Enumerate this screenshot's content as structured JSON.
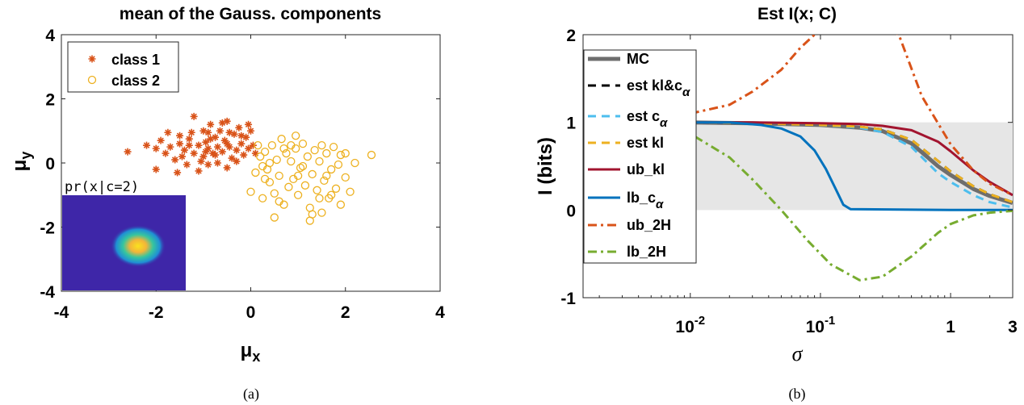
{
  "figure": {
    "caption_a": "(a)",
    "caption_b": "(b)"
  },
  "chart_data": [
    {
      "type": "scatter",
      "title": "mean of the Gauss. components",
      "xlabel": "μx",
      "ylabel": "μy",
      "xlim": [
        -4,
        4
      ],
      "ylim": [
        -4,
        4
      ],
      "xticks": [
        "-4",
        "-2",
        "0",
        "2",
        "4"
      ],
      "yticks": [
        "-4",
        "-2",
        "0",
        "2",
        "4"
      ],
      "grid": false,
      "legend_position": "top-left",
      "inset_label": "pr(x|c=2)",
      "series": [
        {
          "name": "class 1",
          "marker": "star",
          "color": "#d95319",
          "points": [
            [
              -2.6,
              0.35
            ],
            [
              -2.2,
              0.55
            ],
            [
              -2.0,
              0.45
            ],
            [
              -1.9,
              0.7
            ],
            [
              -1.8,
              0.3
            ],
            [
              -1.7,
              0.5
            ],
            [
              -1.6,
              0.1
            ],
            [
              -1.5,
              0.6
            ],
            [
              -1.5,
              0.85
            ],
            [
              -1.4,
              0.4
            ],
            [
              -1.35,
              -0.05
            ],
            [
              -1.3,
              0.75
            ],
            [
              -1.2,
              0.3
            ],
            [
              -1.2,
              1.45
            ],
            [
              -1.1,
              0.55
            ],
            [
              -1.1,
              -0.25
            ],
            [
              -1.0,
              1.0
            ],
            [
              -1.0,
              0.2
            ],
            [
              -0.95,
              0.65
            ],
            [
              -0.9,
              0.45
            ],
            [
              -0.9,
              -0.05
            ],
            [
              -0.85,
              1.2
            ],
            [
              -0.8,
              0.3
            ],
            [
              -0.75,
              0.8
            ],
            [
              -0.7,
              0.5
            ],
            [
              -0.7,
              0.0
            ],
            [
              -0.65,
              1.0
            ],
            [
              -0.6,
              0.35
            ],
            [
              -0.55,
              0.7
            ],
            [
              -0.5,
              -0.15
            ],
            [
              -0.5,
              1.3
            ],
            [
              -0.45,
              0.5
            ],
            [
              -0.4,
              0.15
            ],
            [
              -0.35,
              0.9
            ],
            [
              -0.3,
              0.4
            ],
            [
              -0.25,
              1.1
            ],
            [
              -0.2,
              0.6
            ],
            [
              -0.15,
              0.25
            ],
            [
              -0.1,
              0.8
            ],
            [
              -0.05,
              0.45
            ],
            [
              0.0,
              1.0
            ],
            [
              0.05,
              0.55
            ],
            [
              -1.25,
              0.95
            ],
            [
              -1.55,
              -0.3
            ],
            [
              -0.85,
              0.75
            ],
            [
              -1.05,
              0.05
            ],
            [
              -0.6,
              1.25
            ],
            [
              -0.3,
              0.05
            ],
            [
              0.1,
              0.3
            ],
            [
              -2.0,
              -0.2
            ],
            [
              -1.75,
              0.95
            ],
            [
              -0.95,
              0.35
            ],
            [
              -1.3,
              0.55
            ],
            [
              -0.45,
              0.95
            ],
            [
              -0.05,
              1.2
            ],
            [
              -0.75,
              0.25
            ],
            [
              -0.5,
              0.6
            ],
            [
              -1.45,
              0.2
            ],
            [
              -0.2,
              0.85
            ],
            [
              -0.9,
              0.95
            ]
          ]
        },
        {
          "name": "class 2",
          "marker": "circle",
          "color": "#edb120",
          "points": [
            [
              0.0,
              -0.9
            ],
            [
              0.1,
              -0.3
            ],
            [
              0.2,
              0.2
            ],
            [
              0.25,
              -1.1
            ],
            [
              0.3,
              0.35
            ],
            [
              0.35,
              -0.2
            ],
            [
              0.4,
              -0.6
            ],
            [
              0.45,
              0.55
            ],
            [
              0.5,
              -0.95
            ],
            [
              0.55,
              0.1
            ],
            [
              0.6,
              -0.4
            ],
            [
              0.65,
              0.75
            ],
            [
              0.7,
              -1.3
            ],
            [
              0.75,
              0.3
            ],
            [
              0.8,
              -0.75
            ],
            [
              0.85,
              0.05
            ],
            [
              0.9,
              -0.5
            ],
            [
              0.95,
              0.45
            ],
            [
              1.0,
              -1.0
            ],
            [
              1.05,
              -0.15
            ],
            [
              1.1,
              0.6
            ],
            [
              1.15,
              -0.7
            ],
            [
              1.2,
              0.2
            ],
            [
              1.25,
              -1.4
            ],
            [
              1.3,
              -0.35
            ],
            [
              1.35,
              0.4
            ],
            [
              1.4,
              -0.85
            ],
            [
              1.45,
              0.05
            ],
            [
              1.5,
              -1.55
            ],
            [
              1.55,
              -0.55
            ],
            [
              1.6,
              0.3
            ],
            [
              1.65,
              -1.1
            ],
            [
              1.7,
              -0.2
            ],
            [
              1.75,
              0.5
            ],
            [
              1.8,
              -0.8
            ],
            [
              1.85,
              -0.05
            ],
            [
              1.9,
              0.25
            ],
            [
              2.0,
              -0.45
            ],
            [
              2.1,
              -0.9
            ],
            [
              2.2,
              0.0
            ],
            [
              2.55,
              0.25
            ],
            [
              0.5,
              -1.7
            ],
            [
              1.25,
              -1.8
            ],
            [
              0.15,
              0.55
            ],
            [
              0.85,
              0.55
            ],
            [
              0.4,
              0.0
            ],
            [
              1.0,
              -0.4
            ],
            [
              1.3,
              -1.6
            ],
            [
              1.6,
              -0.4
            ],
            [
              0.6,
              -1.2
            ],
            [
              1.9,
              -1.3
            ],
            [
              0.3,
              -0.5
            ],
            [
              0.7,
              0.45
            ],
            [
              1.45,
              -1.1
            ],
            [
              2.0,
              0.3
            ],
            [
              1.1,
              -0.1
            ],
            [
              0.95,
              0.85
            ],
            [
              1.5,
              0.55
            ],
            [
              0.25,
              -0.1
            ],
            [
              1.7,
              -1.0
            ]
          ]
        }
      ]
    },
    {
      "type": "line",
      "title": "Est I(x; C)",
      "xlabel": "σ",
      "ylabel": "I (bits)",
      "xscale": "log",
      "xlim": [
        0.0015,
        3
      ],
      "ylim": [
        -1,
        2
      ],
      "xticks": [
        {
          "value": 0.01,
          "base": "10",
          "exp": "-2"
        },
        {
          "value": 0.1,
          "base": "10",
          "exp": "-1"
        },
        {
          "value": 1,
          "label": "1"
        },
        {
          "value": 3,
          "label": "3"
        }
      ],
      "yticks": [
        "-1",
        "0",
        "1",
        "2"
      ],
      "shaded_band": [
        0,
        1
      ],
      "grid": false,
      "legend_position": "left",
      "series": [
        {
          "name": "MC",
          "color": "#6e6e6e",
          "style": "solid",
          "width": 5,
          "x": [
            0.002,
            0.01,
            0.03,
            0.1,
            0.2,
            0.3,
            0.5,
            0.8,
            1.0,
            1.5,
            2.0,
            3.0
          ],
          "y": [
            1.0,
            1.0,
            0.99,
            0.97,
            0.94,
            0.9,
            0.76,
            0.5,
            0.4,
            0.24,
            0.16,
            0.08
          ]
        },
        {
          "name": "est kl&c",
          "sub": "α",
          "color": "#000000",
          "style": "dashed",
          "width": 3,
          "x": [
            0.002,
            0.01,
            0.03,
            0.1,
            0.2,
            0.3,
            0.5,
            0.8,
            1.0,
            1.5,
            2.0,
            3.0
          ],
          "y": [
            1.0,
            1.0,
            0.99,
            0.97,
            0.95,
            0.92,
            0.8,
            0.56,
            0.44,
            0.27,
            0.18,
            0.09
          ]
        },
        {
          "name": "est c",
          "sub": "α",
          "color": "#4dbeee",
          "style": "dashed",
          "width": 3,
          "x": [
            0.002,
            0.01,
            0.03,
            0.1,
            0.2,
            0.3,
            0.5,
            0.8,
            1.0,
            1.5,
            2.0,
            3.0
          ],
          "y": [
            1.0,
            1.0,
            0.99,
            0.97,
            0.94,
            0.89,
            0.72,
            0.42,
            0.32,
            0.17,
            0.09,
            0.03
          ]
        },
        {
          "name": "est kl",
          "color": "#edb120",
          "style": "dashed",
          "width": 3,
          "x": [
            0.002,
            0.01,
            0.03,
            0.1,
            0.2,
            0.3,
            0.5,
            0.8,
            1.0,
            1.5,
            2.0,
            3.0
          ],
          "y": [
            1.0,
            1.0,
            0.99,
            0.97,
            0.95,
            0.92,
            0.8,
            0.56,
            0.44,
            0.27,
            0.18,
            0.09
          ]
        },
        {
          "name": "ub_kl",
          "color": "#a2142f",
          "style": "solid",
          "width": 3,
          "x": [
            0.002,
            0.01,
            0.03,
            0.1,
            0.2,
            0.3,
            0.5,
            0.8,
            1.0,
            1.5,
            2.0,
            3.0
          ],
          "y": [
            1.0,
            1.0,
            1.0,
            0.99,
            0.98,
            0.96,
            0.91,
            0.78,
            0.67,
            0.45,
            0.32,
            0.17
          ]
        },
        {
          "name": "lb_c",
          "sub": "α",
          "color": "#0072bd",
          "style": "solid",
          "width": 3,
          "x": [
            0.002,
            0.02,
            0.035,
            0.05,
            0.07,
            0.09,
            0.11,
            0.13,
            0.15,
            0.17,
            1.0,
            3.0
          ],
          "y": [
            1.0,
            1.0,
            0.97,
            0.93,
            0.84,
            0.68,
            0.47,
            0.25,
            0.06,
            0.01,
            0.0,
            0.0
          ]
        },
        {
          "name": "ub_2H",
          "color": "#d95319",
          "style": "dashdot",
          "width": 3,
          "x": [
            0.01,
            0.02,
            0.03,
            0.05,
            0.07,
            0.09,
            0.1,
            0.3,
            0.4,
            0.6,
            1.0,
            1.5,
            2.0,
            3.0
          ],
          "y": [
            1.1,
            1.2,
            1.35,
            1.6,
            1.85,
            2.0,
            2.1,
            2.1,
            2.0,
            1.3,
            0.75,
            0.45,
            0.3,
            0.17
          ]
        },
        {
          "name": "lb_2H",
          "color": "#77ac30",
          "style": "dashdot",
          "width": 3,
          "x": [
            0.002,
            0.005,
            0.01,
            0.02,
            0.03,
            0.05,
            0.08,
            0.12,
            0.2,
            0.3,
            0.5,
            0.8,
            1.0,
            1.5,
            2.0,
            3.0
          ],
          "y": [
            1.0,
            0.95,
            0.87,
            0.6,
            0.35,
            0.0,
            -0.35,
            -0.62,
            -0.8,
            -0.76,
            -0.53,
            -0.26,
            -0.16,
            -0.06,
            -0.03,
            -0.01
          ]
        }
      ]
    }
  ]
}
